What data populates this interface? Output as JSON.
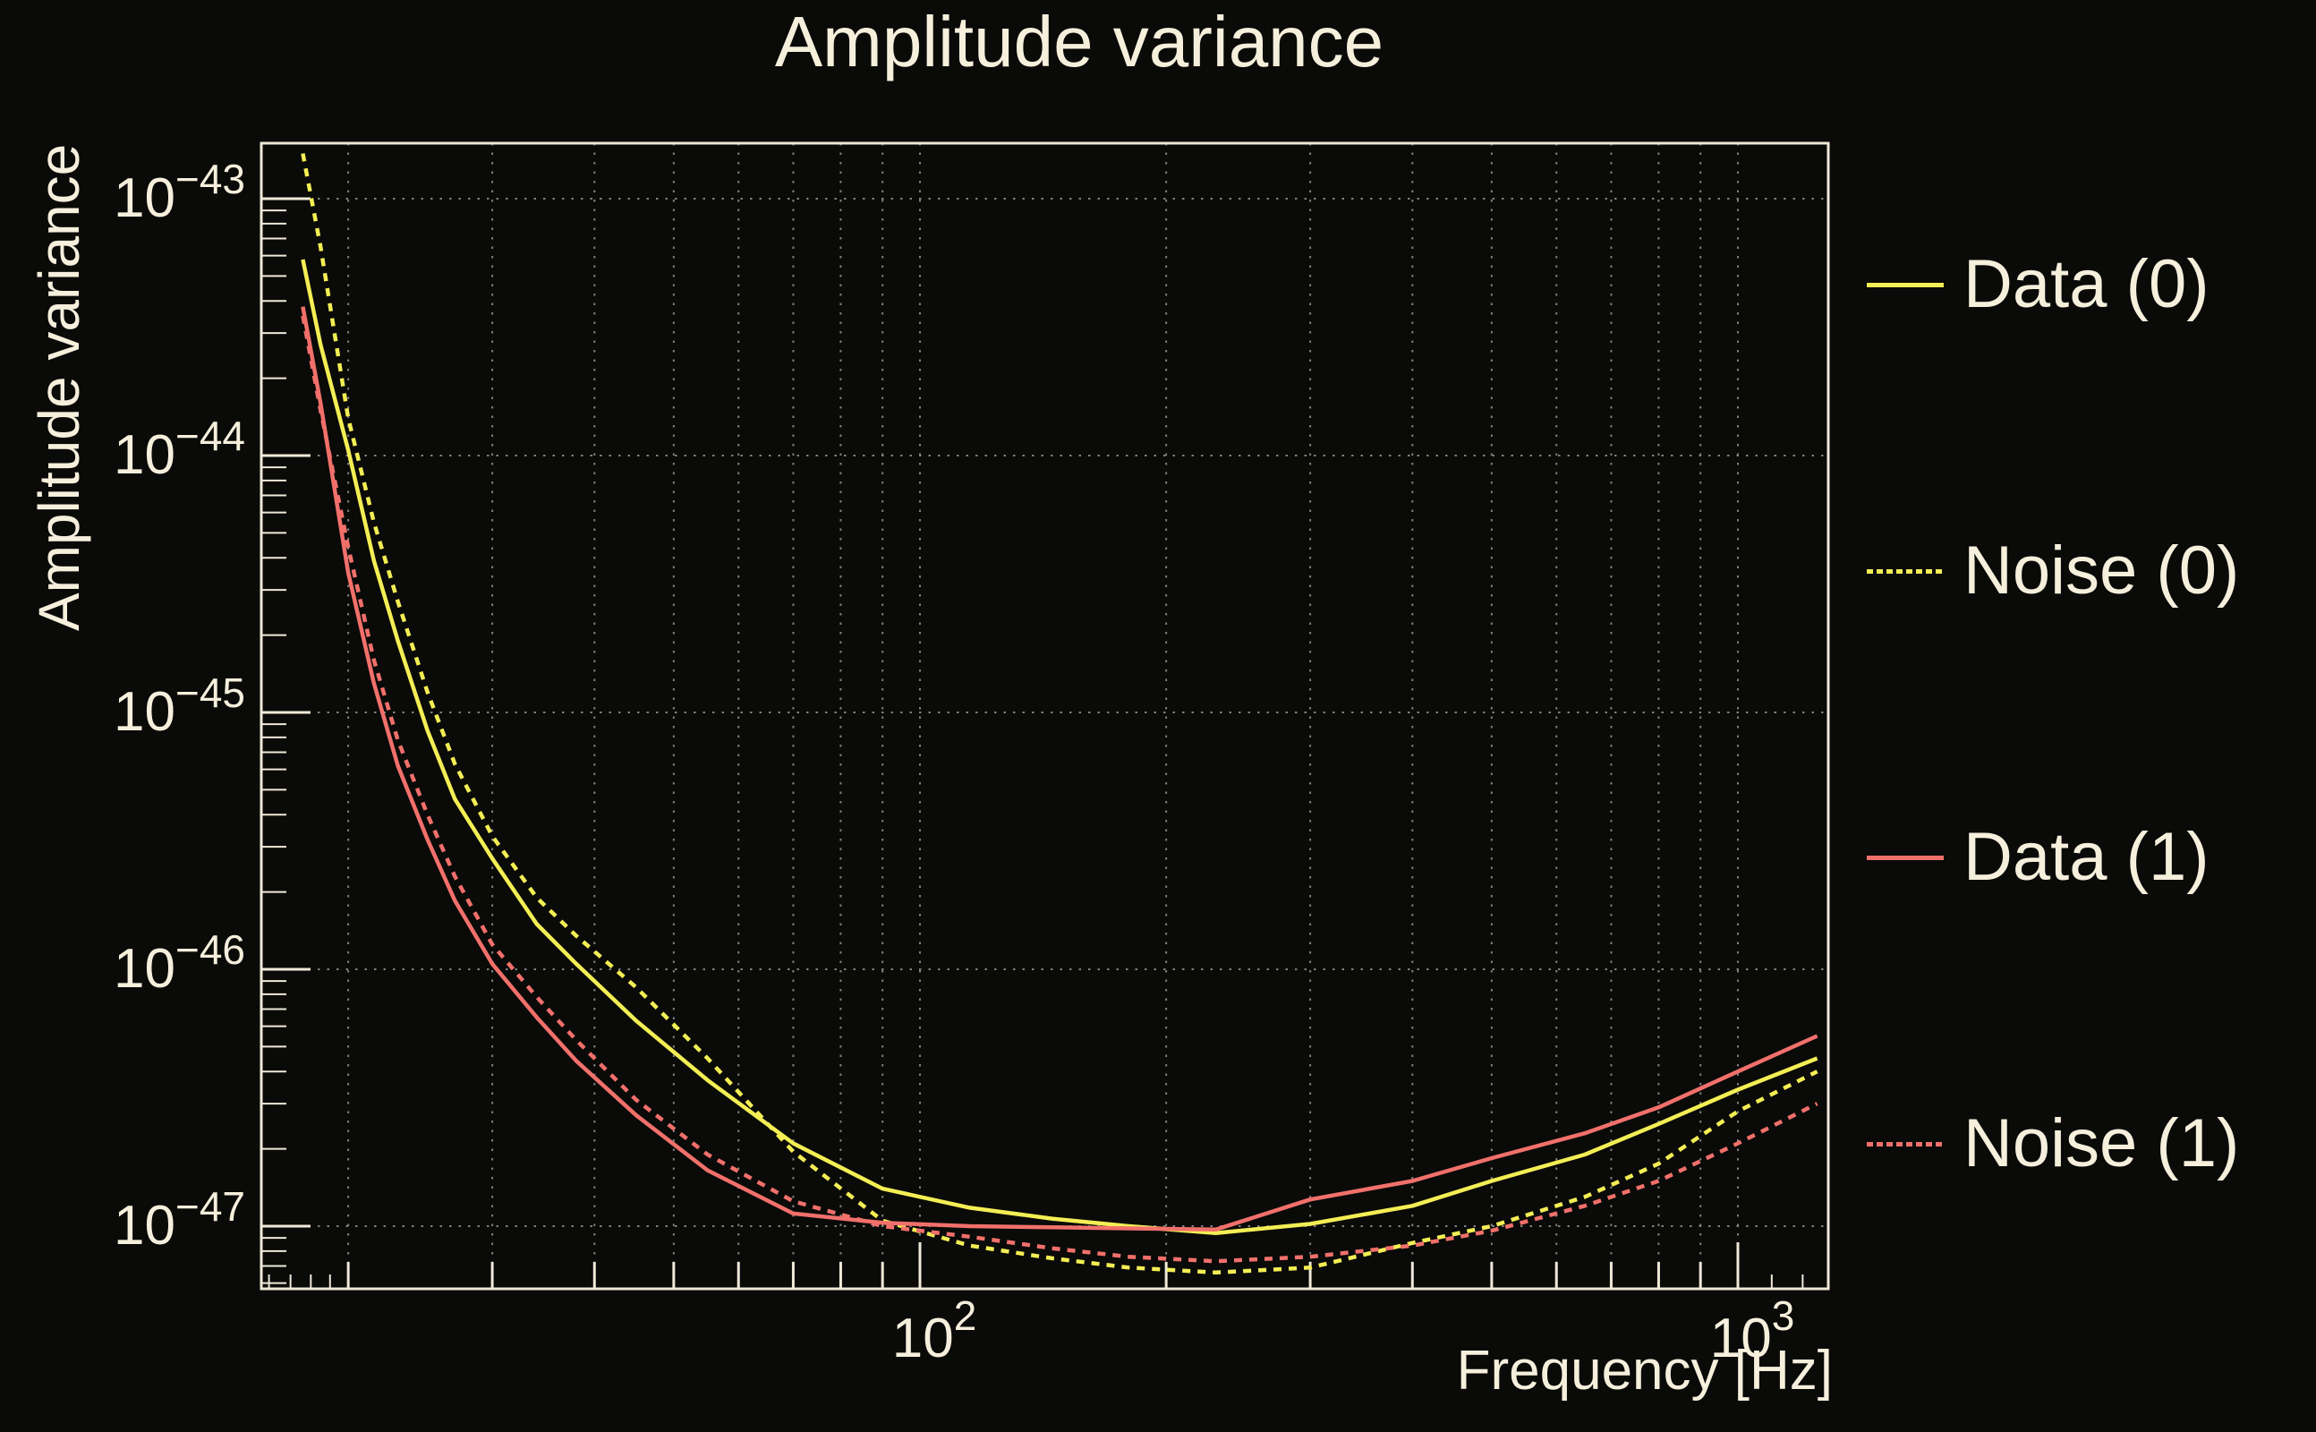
{
  "title": "Amplitude variance",
  "colors": {
    "background": "#0a0a08",
    "text": "#f5efdc",
    "frame": "#efe9d8",
    "grid": "#8c8c8c",
    "yellow": "#f3ee54",
    "red": "#f1706b"
  },
  "axes": {
    "x": {
      "title": "Frequency [Hz]",
      "scale": "log",
      "min": 15.7,
      "max": 1290,
      "tick_labels": [
        {
          "base": "10",
          "exp": "2",
          "value": 100
        },
        {
          "base": "10",
          "exp": "3",
          "value": 1000
        }
      ],
      "minor_ticks": [
        20,
        30,
        40,
        50,
        60,
        70,
        80,
        90,
        200,
        300,
        400,
        500,
        600,
        700,
        800,
        900
      ],
      "tiny_ticks": [
        16,
        17,
        18,
        19,
        1100,
        1200
      ]
    },
    "y": {
      "title": "Amplitude variance",
      "scale": "log",
      "min": 5.7e-48,
      "max": 1.64e-43,
      "tick_labels": [
        {
          "base": "10",
          "exp": "−43",
          "value": 1e-43
        },
        {
          "base": "10",
          "exp": "−44",
          "value": 1e-44
        },
        {
          "base": "10",
          "exp": "−45",
          "value": 1e-45
        },
        {
          "base": "10",
          "exp": "−46",
          "value": 1e-46
        },
        {
          "base": "10",
          "exp": "−47",
          "value": 1e-47
        }
      ]
    }
  },
  "legend": {
    "entries": [
      {
        "label": "Data (0)",
        "color": "yellow",
        "style": "solid"
      },
      {
        "label": "Noise (0)",
        "color": "yellow",
        "style": "dashed"
      },
      {
        "label": "Data (1)",
        "color": "red",
        "style": "solid"
      },
      {
        "label": "Noise (1)",
        "color": "red",
        "style": "dashed"
      }
    ]
  },
  "chart_data": {
    "type": "line",
    "title": "Amplitude variance",
    "xlabel": "Frequency [Hz]",
    "ylabel": "Amplitude variance",
    "log_x": true,
    "log_y": true,
    "grid": true,
    "legend_position": "right",
    "x_range": [
      15.7,
      1290
    ],
    "y_range": [
      5.7e-48,
      1.64e-43
    ],
    "series": [
      {
        "name": "Data (0)",
        "color": "yellow",
        "line_style": "solid",
        "points": [
          [
            17.6,
            5.8e-44
          ],
          [
            18.5,
            2.7e-44
          ],
          [
            20,
            1.05e-44
          ],
          [
            21.5,
            3.9e-45
          ],
          [
            23,
            1.9e-45
          ],
          [
            25,
            8.5e-46
          ],
          [
            27,
            4.6e-46
          ],
          [
            30,
            2.7e-46
          ],
          [
            34,
            1.5e-46
          ],
          [
            38,
            1.05e-46
          ],
          [
            45,
            6.3e-47
          ],
          [
            55,
            3.7e-47
          ],
          [
            70,
            2.1e-47
          ],
          [
            90,
            1.4e-47
          ],
          [
            115,
            1.18e-47
          ],
          [
            145,
            1.07e-47
          ],
          [
            180,
            1e-47
          ],
          [
            230,
            9.4e-48
          ],
          [
            300,
            1.02e-47
          ],
          [
            400,
            1.2e-47
          ],
          [
            500,
            1.5e-47
          ],
          [
            650,
            1.9e-47
          ],
          [
            800,
            2.5e-47
          ],
          [
            1000,
            3.4e-47
          ],
          [
            1250,
            4.5e-47
          ]
        ]
      },
      {
        "name": "Noise (0)",
        "color": "yellow",
        "line_style": "dashed",
        "points": [
          [
            17.6,
            1.5e-43
          ],
          [
            18.5,
            6.5e-44
          ],
          [
            20,
            1.4e-44
          ],
          [
            21.5,
            5.5e-45
          ],
          [
            23,
            2.7e-45
          ],
          [
            25,
            1.2e-45
          ],
          [
            27,
            6.3e-46
          ],
          [
            30,
            3.3e-46
          ],
          [
            34,
            1.9e-46
          ],
          [
            38,
            1.35e-46
          ],
          [
            45,
            8.5e-47
          ],
          [
            55,
            4.5e-47
          ],
          [
            70,
            1.95e-47
          ],
          [
            90,
            1.05e-47
          ],
          [
            115,
            8.4e-48
          ],
          [
            145,
            7.5e-48
          ],
          [
            180,
            6.9e-48
          ],
          [
            230,
            6.6e-48
          ],
          [
            300,
            6.9e-48
          ],
          [
            400,
            8.6e-48
          ],
          [
            500,
            1e-47
          ],
          [
            650,
            1.3e-47
          ],
          [
            800,
            1.75e-47
          ],
          [
            1000,
            2.8e-47
          ],
          [
            1250,
            4e-47
          ]
        ]
      },
      {
        "name": "Data (1)",
        "color": "red",
        "line_style": "solid",
        "points": [
          [
            17.6,
            3.8e-44
          ],
          [
            18.5,
            1.6e-44
          ],
          [
            20,
            3.5e-45
          ],
          [
            21.5,
            1.3e-45
          ],
          [
            23,
            6.2e-46
          ],
          [
            25,
            3.2e-46
          ],
          [
            27,
            1.85e-46
          ],
          [
            30,
            1.05e-46
          ],
          [
            34,
            6.5e-47
          ],
          [
            38,
            4.4e-47
          ],
          [
            45,
            2.7e-47
          ],
          [
            55,
            1.65e-47
          ],
          [
            70,
            1.12e-47
          ],
          [
            90,
            1.03e-47
          ],
          [
            115,
            1e-47
          ],
          [
            145,
            9.9e-48
          ],
          [
            180,
            9.8e-48
          ],
          [
            230,
            9.7e-48
          ],
          [
            300,
            1.27e-47
          ],
          [
            400,
            1.5e-47
          ],
          [
            500,
            1.84e-47
          ],
          [
            650,
            2.3e-47
          ],
          [
            800,
            2.9e-47
          ],
          [
            1000,
            4e-47
          ],
          [
            1250,
            5.5e-47
          ]
        ]
      },
      {
        "name": "Noise (1)",
        "color": "red",
        "line_style": "dashed",
        "points": [
          [
            17.6,
            3.5e-44
          ],
          [
            18.5,
            1.5e-44
          ],
          [
            20,
            4.4e-45
          ],
          [
            21.5,
            1.6e-45
          ],
          [
            23,
            7.8e-46
          ],
          [
            25,
            4e-46
          ],
          [
            27,
            2.3e-46
          ],
          [
            30,
            1.25e-46
          ],
          [
            34,
            7.8e-47
          ],
          [
            38,
            5.3e-47
          ],
          [
            45,
            3.1e-47
          ],
          [
            55,
            1.9e-47
          ],
          [
            70,
            1.25e-47
          ],
          [
            90,
            1e-47
          ],
          [
            115,
            9.1e-48
          ],
          [
            145,
            8.2e-48
          ],
          [
            180,
            7.6e-48
          ],
          [
            230,
            7.3e-48
          ],
          [
            300,
            7.6e-48
          ],
          [
            400,
            8.4e-48
          ],
          [
            500,
            9.6e-48
          ],
          [
            650,
            1.2e-47
          ],
          [
            800,
            1.5e-47
          ],
          [
            1000,
            2.1e-47
          ],
          [
            1250,
            3e-47
          ]
        ]
      }
    ]
  }
}
